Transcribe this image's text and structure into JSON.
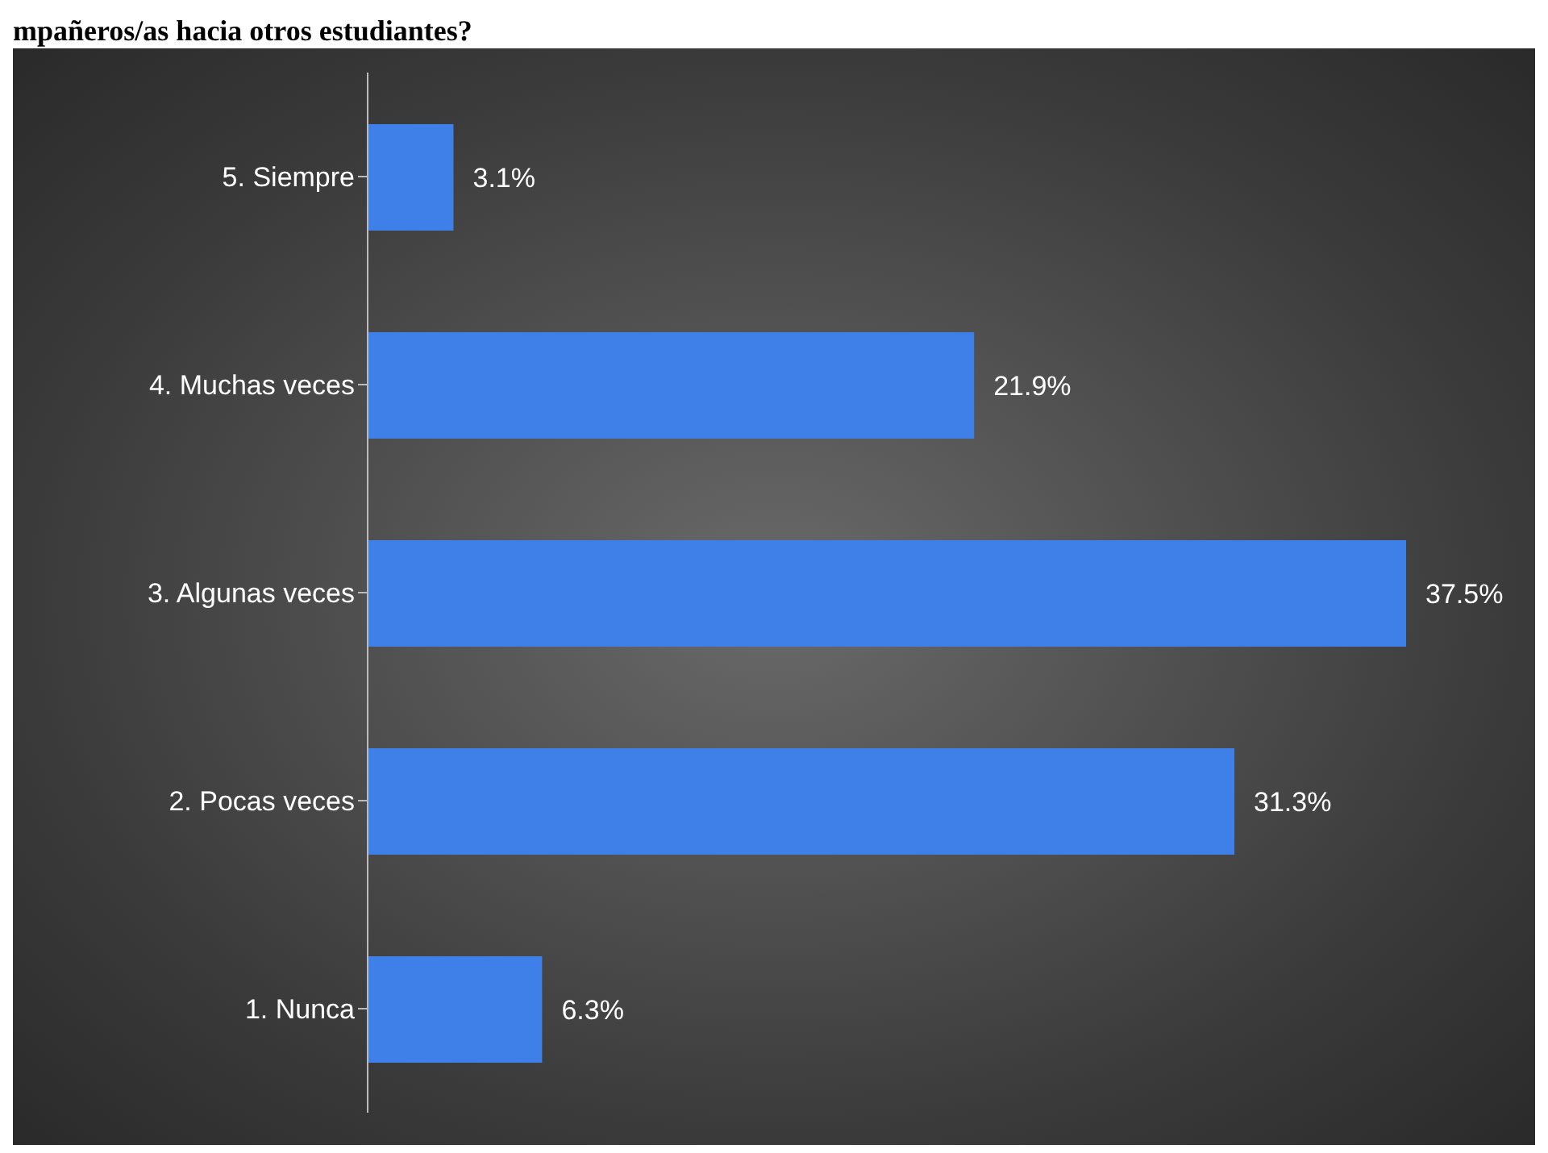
{
  "chart_data": {
    "type": "bar",
    "orientation": "horizontal",
    "title": "mpañeros/as hacia otros estudiantes?",
    "categories": [
      "5. Siempre",
      "4. Muchas veces",
      "3. Algunas veces",
      "2. Pocas veces",
      "1. Nunca"
    ],
    "values": [
      3.1,
      21.9,
      37.5,
      31.3,
      6.3
    ],
    "value_labels": [
      "3.1%",
      "21.9%",
      "37.5%",
      "31.3%",
      "6.3%"
    ],
    "color": "#3f7fe8"
  }
}
